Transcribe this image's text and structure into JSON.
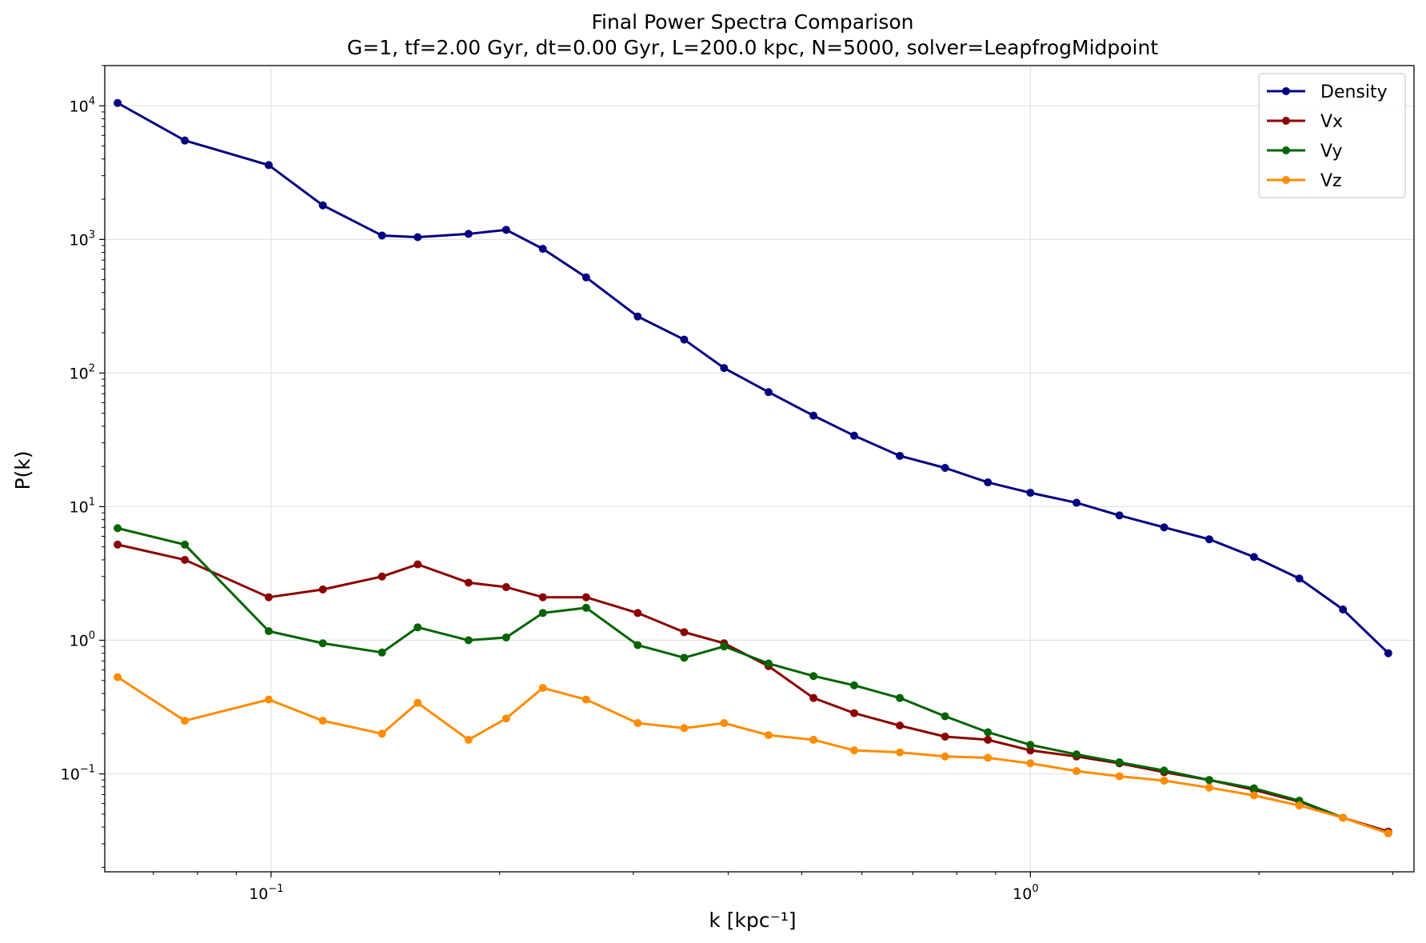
{
  "chart_data": {
    "type": "line",
    "title": "Final Power Spectra Comparison",
    "subtitle": "G=1, tf=2.00 Gyr, dt=0.00 Gyr, L=200.0 kpc, N=5000, solver=LeapfrogMidpoint",
    "xlabel": "k [kpc⁻¹]",
    "ylabel": "P(k)",
    "xscale": "log",
    "yscale": "log",
    "xlim": [
      0.0604,
      3.2
    ],
    "ylim": [
      0.0185,
      20000
    ],
    "grid": true,
    "legend_position": "top-right",
    "x_ticks": [
      {
        "base": "10",
        "exp": "−1",
        "value": 0.1
      },
      {
        "base": "10",
        "exp": "0",
        "value": 1
      }
    ],
    "y_ticks": [
      {
        "base": "10",
        "exp": "−1",
        "value": 0.1
      },
      {
        "base": "10",
        "exp": "0",
        "value": 1
      },
      {
        "base": "10",
        "exp": "1",
        "value": 10
      },
      {
        "base": "10",
        "exp": "2",
        "value": 100
      },
      {
        "base": "10",
        "exp": "3",
        "value": 1000
      },
      {
        "base": "10",
        "exp": "4",
        "value": 10000
      }
    ],
    "x": [
      0.0628,
      0.077,
      0.0993,
      0.117,
      0.14,
      0.156,
      0.182,
      0.204,
      0.228,
      0.26,
      0.304,
      0.35,
      0.395,
      0.452,
      0.518,
      0.586,
      0.673,
      0.772,
      0.879,
      1.0,
      1.15,
      1.31,
      1.5,
      1.72,
      1.97,
      2.26,
      2.58,
      2.96
    ],
    "series": [
      {
        "name": "Density",
        "color": "#000080",
        "values": [
          10500,
          5500,
          3600,
          1800,
          1070,
          1040,
          1100,
          1180,
          850,
          520,
          265,
          178,
          109,
          72,
          48,
          34,
          24,
          19.5,
          15.2,
          12.7,
          10.7,
          8.6,
          7.0,
          5.7,
          4.2,
          2.9,
          1.7,
          0.8
        ]
      },
      {
        "name": "Vx",
        "color": "#8b0000",
        "values": [
          5.2,
          4.0,
          2.1,
          2.4,
          3.0,
          3.7,
          2.7,
          2.5,
          2.1,
          2.1,
          1.6,
          1.15,
          0.95,
          0.64,
          0.37,
          0.285,
          0.23,
          0.19,
          0.18,
          0.15,
          0.135,
          0.12,
          0.103,
          0.09,
          0.076,
          0.062,
          0.047,
          0.037
        ]
      },
      {
        "name": "Vy",
        "color": "#006400",
        "values": [
          6.9,
          5.2,
          1.17,
          0.95,
          0.81,
          1.25,
          1.0,
          1.05,
          1.6,
          1.75,
          0.92,
          0.74,
          0.9,
          0.67,
          0.54,
          0.46,
          0.37,
          0.27,
          0.205,
          0.165,
          0.14,
          0.122,
          0.106,
          0.09,
          0.078,
          0.063,
          0.047,
          0.036
        ]
      },
      {
        "name": "Vz",
        "color": "#ff8c00",
        "values": [
          0.53,
          0.25,
          0.36,
          0.25,
          0.2,
          0.34,
          0.18,
          0.26,
          0.44,
          0.36,
          0.24,
          0.22,
          0.24,
          0.195,
          0.18,
          0.15,
          0.145,
          0.135,
          0.132,
          0.12,
          0.105,
          0.096,
          0.089,
          0.079,
          0.069,
          0.058,
          0.047,
          0.036
        ]
      }
    ]
  }
}
